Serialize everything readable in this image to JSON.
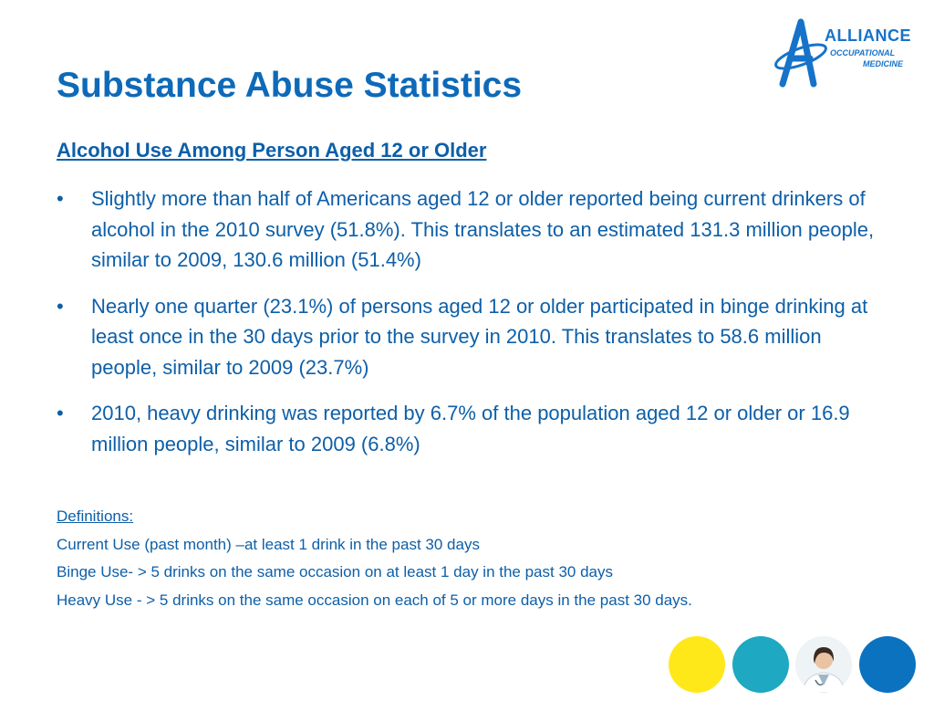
{
  "logo": {
    "word1": "ALLIANCE",
    "word2": "OCCUPATIONAL",
    "word3": "MEDICINE"
  },
  "slide": {
    "title": "Substance Abuse Statistics",
    "subtitle": "Alcohol Use Among Person Aged 12 or Older",
    "bullet_glyph": "•",
    "bullets": [
      "Slightly more than half of Americans aged 12 or older reported being current drinkers of alcohol in the 2010 survey (51.8%). This translates to an estimated 131.3 million people, similar to 2009, 130.6 million (51.4%)",
      "Nearly one quarter (23.1%) of persons aged 12 or older participated in binge drinking at least once in the 30 days prior to the survey in 2010. This translates to 58.6 million people, similar to 2009 (23.7%)",
      "2010, heavy drinking was reported by 6.7% of the population aged 12 or older or 16.9 million people, similar to 2009 (6.8%)"
    ],
    "definitions": {
      "heading": "Definitions:",
      "lines": [
        "Current Use (past month) –at least 1 drink in the past 30 days",
        "Binge Use- > 5 drinks on the same occasion on at least 1 day in the past 30 days",
        "Heavy Use - > 5 drinks on the same occasion on each of 5 or more days in the past 30 days."
      ]
    }
  },
  "decor": {
    "circle_colors": [
      "#ffe81a",
      "#1ea8c2",
      "#eef3f6",
      "#0b72c0"
    ],
    "circle_icons": [
      "yellow-circle",
      "teal-circle",
      "doctor-photo",
      "blue-circle"
    ]
  }
}
